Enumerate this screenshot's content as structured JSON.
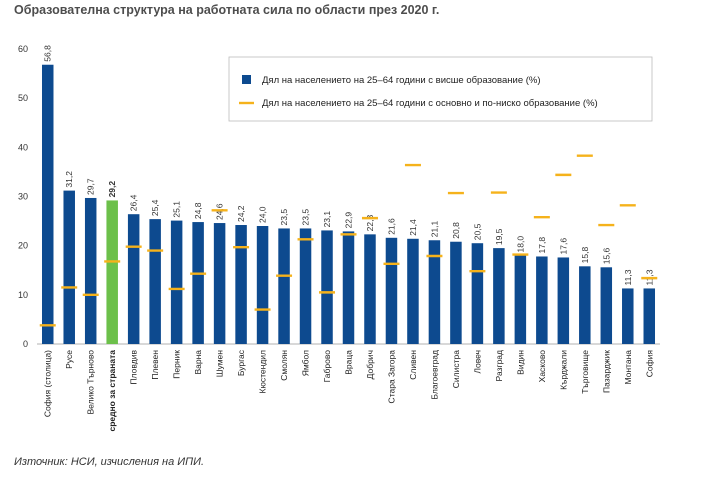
{
  "chart_data": {
    "type": "bar",
    "title": "Образователна структура на работната сила по области през 2020 г.",
    "categories": [
      "София (столица)",
      "Русе",
      "Велико Търново",
      "средно за страната",
      "Пловдив",
      "Плевен",
      "Перник",
      "Варна",
      "Шумен",
      "Бургас",
      "Кюстендил",
      "Смолян",
      "Ямбол",
      "Габрово",
      "Враца",
      "Добрич",
      "Стара Загора",
      "Сливен",
      "Благоевград",
      "Силистра",
      "Ловеч",
      "Разград",
      "Видин",
      "Хасково",
      "Кърджали",
      "Търговище",
      "Пазарджик",
      "Монтана",
      "София"
    ],
    "value_labels": [
      "56,8",
      "31,2",
      "29,7",
      "29,2",
      "26,4",
      "25,4",
      "25,1",
      "24,8",
      "24,6",
      "24,2",
      "24,0",
      "23,5",
      "23,5",
      "23,1",
      "22,9",
      "22,3",
      "21,6",
      "21,4",
      "21,1",
      "20,8",
      "20,5",
      "19,5",
      "18,0",
      "17,8",
      "17,6",
      "15,8",
      "15,6",
      "11,3",
      "11,3"
    ],
    "series": [
      {
        "name": "Дял на населението на 25–64 години с висше образование (%)",
        "type": "bar",
        "color": "#0d4a8f",
        "values": [
          56.8,
          31.2,
          29.7,
          29.2,
          26.4,
          25.4,
          25.1,
          24.8,
          24.6,
          24.2,
          24.0,
          23.5,
          23.5,
          23.1,
          22.9,
          22.3,
          21.6,
          21.4,
          21.1,
          20.8,
          20.5,
          19.5,
          18.0,
          17.8,
          17.6,
          15.8,
          15.6,
          11.3,
          11.3
        ]
      },
      {
        "name": "Дял на населението на 25–64 години с основно и по-ниско образование (%)",
        "type": "marker",
        "color": "#f5b21b",
        "values": [
          3.8,
          11.5,
          10.0,
          16.8,
          19.8,
          19.0,
          11.2,
          14.3,
          27.2,
          19.7,
          7.0,
          13.9,
          21.3,
          10.5,
          22.3,
          25.6,
          16.3,
          36.4,
          17.9,
          30.7,
          14.8,
          30.8,
          18.2,
          25.8,
          34.4,
          38.3,
          24.2,
          28.2,
          13.4
        ]
      }
    ],
    "highlight": {
      "index": 3,
      "bar_color": "#6cc04a",
      "label_color": "#d4213d"
    },
    "ylim": [
      0,
      60
    ],
    "yticks": [
      "0",
      "10",
      "20",
      "30",
      "40",
      "50",
      "60"
    ],
    "xlabel": "",
    "ylabel": "",
    "grid": false,
    "legend_position": "top-right"
  },
  "source_note": "Източник: НСИ, изчисления на ИПИ."
}
